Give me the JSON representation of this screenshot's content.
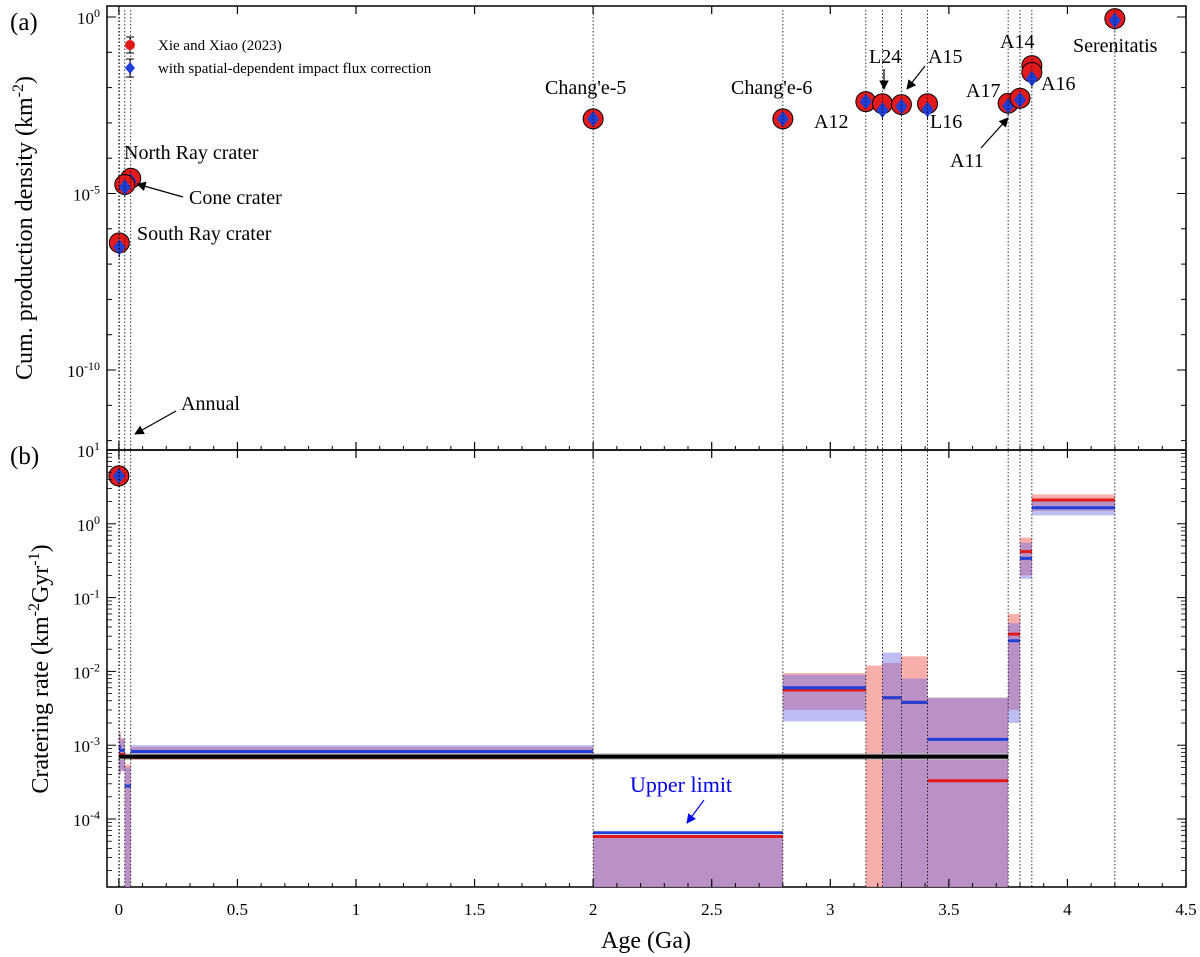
{
  "panel_labels": {
    "a": "(a)",
    "b": "(b)"
  },
  "chart_data": [
    {
      "type": "scatter",
      "panel": "(a)",
      "ylabel_main": "Cum. production density (km",
      "ylabel_sup": "-2",
      "ylabel_close": ")",
      "yscale": "log",
      "xlim": [
        -0.05,
        4.5
      ],
      "ylim_exp": [
        -14,
        0
      ],
      "ytick_exps": [
        0,
        -5,
        -10
      ],
      "legend": {
        "placement": "top-left",
        "entries": [
          "Xie and Xiao (2023)",
          "with spatial-dependent impact flux correction"
        ]
      },
      "series": [
        {
          "name": "Xie and Xiao (2023)",
          "color": "#e31a1c"
        },
        {
          "name": "with spatial-dependent impact flux correction",
          "color": "#1f3fd6"
        }
      ],
      "points": [
        {
          "label": "Annual",
          "x": 0.0,
          "y_red": 1e-13,
          "y_blue": 1e-13
        },
        {
          "label": "South Ray crater",
          "x": 0.002,
          "y_red": 4e-07,
          "y_blue": 3e-07
        },
        {
          "label": "North Ray crater",
          "x": 0.05,
          "y_red": 2.7e-05,
          "y_blue": 2.2e-05
        },
        {
          "label": "Cone crater",
          "x": 0.025,
          "y_red": 1.8e-05,
          "y_blue": 1.5e-05
        },
        {
          "label": "Chang'e-5",
          "x": 2.0,
          "y_red": 0.0013,
          "y_blue": 0.0013
        },
        {
          "label": "Chang'e-6",
          "x": 2.8,
          "y_red": 0.0013,
          "y_blue": 0.0013
        },
        {
          "label": "A12",
          "x": 3.15,
          "y_red": 0.004,
          "y_blue": 0.004
        },
        {
          "label": "L24",
          "x": 3.22,
          "y_red": 0.0035,
          "y_blue": 0.0023
        },
        {
          "label": "A15",
          "x": 3.3,
          "y_red": 0.0033,
          "y_blue": 0.0029
        },
        {
          "label": "L16",
          "x": 3.41,
          "y_red": 0.0035,
          "y_blue": 0.0024
        },
        {
          "label": "A11",
          "x": 3.75,
          "y_red": 0.0036,
          "y_blue": 0.003
        },
        {
          "label": "A17",
          "x": 3.8,
          "y_red": 0.005,
          "y_blue": 0.0045
        },
        {
          "label": "A14",
          "x": 3.85,
          "y_red": 0.042,
          "y_blue": 0.03
        },
        {
          "label": "A16",
          "x": 3.85,
          "y_red": 0.027,
          "y_blue": 0.018
        },
        {
          "label": "Serenitatis",
          "x": 4.2,
          "y_red": 0.9,
          "y_blue": 0.8
        }
      ],
      "annotations": [
        "North Ray crater",
        "Cone crater",
        "South Ray crater",
        "Annual",
        "Chang'e-5",
        "Chang'e-6",
        "A12",
        "L24",
        "A15",
        "L16",
        "A11",
        "A17",
        "A14",
        "A16",
        "Serenitatis"
      ]
    },
    {
      "type": "bar",
      "panel": "(b)",
      "xlabel": "Age (Ga)",
      "ylabel_main": "Cratering rate (km",
      "ylabel_sup1": "-2",
      "ylabel_mid": "Gyr",
      "ylabel_sup2": "-1",
      "ylabel_close": ")",
      "yscale": "log",
      "xlim": [
        -0.05,
        4.5
      ],
      "ylim_exp": [
        -5,
        1
      ],
      "ytick_exps": [
        1,
        0,
        -1,
        -2,
        -3,
        -4
      ],
      "xticks": [
        0,
        0.5,
        1,
        1.5,
        2,
        2.5,
        3,
        3.5,
        4,
        4.5
      ],
      "xtick_labels": [
        "0",
        "0.5",
        "1",
        "1.5",
        "2",
        "2.5",
        "3",
        "3.5",
        "4",
        "4.5"
      ],
      "annotation": {
        "text": "Upper limit",
        "color": "#0000ee",
        "points_to_x": 2.4,
        "points_to_y": 6.5e-05
      },
      "constant_rate": {
        "value": 0.0007,
        "band": [
          0.00063,
          0.00078
        ],
        "x0": 0.0,
        "x1": 3.75
      },
      "intervals": [
        {
          "x0": 0.0,
          "x1": 0.002,
          "red": 0.00095,
          "blue": 0.00095,
          "red_band": [
            0.0004,
            0.0015
          ],
          "blue_band": [
            0.0004,
            0.0014
          ]
        },
        {
          "x0": 0.002,
          "x1": 0.025,
          "red": 0.00075,
          "blue": 0.00085,
          "red_band": [
            0.00045,
            0.00125
          ],
          "blue_band": [
            0.00045,
            0.0012
          ]
        },
        {
          "x0": 0.025,
          "x1": 0.05,
          "red": 0.00028,
          "blue": 0.00028,
          "red_band": [
            1e-05,
            0.00055
          ],
          "blue_band": [
            1e-05,
            0.0005
          ]
        },
        {
          "x0": 0.05,
          "x1": 2.0,
          "red": 0.00068,
          "blue": 0.00082,
          "red_band": [
            0.00063,
            0.00095
          ],
          "blue_band": [
            0.00065,
            0.001
          ]
        },
        {
          "x0": 2.0,
          "x1": 2.8,
          "red": 5.8e-05,
          "blue": 6.5e-05,
          "red_band": [
            1e-05,
            5.8e-05
          ],
          "blue_band": [
            1e-05,
            5.8e-05
          ]
        },
        {
          "x0": 2.8,
          "x1": 3.15,
          "red": 0.0056,
          "blue": 0.006,
          "red_band": [
            0.003,
            0.0095
          ],
          "blue_band": [
            0.0021,
            0.009
          ]
        },
        {
          "x0": 3.15,
          "x1": 3.22,
          "red": null,
          "blue": null,
          "red_band": [
            1e-05,
            0.012
          ],
          "blue_band": null
        },
        {
          "x0": 3.22,
          "x1": 3.3,
          "red": 0.0044,
          "blue": 0.0044,
          "red_band": [
            1e-05,
            0.013
          ],
          "blue_band": [
            1e-05,
            0.018
          ]
        },
        {
          "x0": 3.3,
          "x1": 3.41,
          "red": 0.0038,
          "blue": 0.0038,
          "red_band": [
            1e-05,
            0.016
          ],
          "blue_band": [
            1e-05,
            0.008
          ]
        },
        {
          "x0": 3.41,
          "x1": 3.75,
          "red": 0.00033,
          "blue": 0.0012,
          "red_band": [
            1e-05,
            0.0044
          ],
          "blue_band": [
            1e-05,
            0.0044
          ]
        },
        {
          "x0": 3.75,
          "x1": 3.8,
          "red": 0.032,
          "blue": 0.026,
          "red_band": [
            0.003,
            0.06
          ],
          "blue_band": [
            0.002,
            0.045
          ]
        },
        {
          "x0": 3.8,
          "x1": 3.85,
          "red": 0.42,
          "blue": 0.34,
          "red_band": [
            0.2,
            0.65
          ],
          "blue_band": [
            0.18,
            0.55
          ]
        },
        {
          "x0": 3.85,
          "x1": 4.2,
          "red": 2.1,
          "blue": 1.65,
          "red_band": [
            1.5,
            2.5
          ],
          "blue_band": [
            1.3,
            2.0
          ]
        }
      ],
      "boundaries": [
        0,
        0.002,
        0.025,
        0.05,
        2.0,
        2.8,
        3.15,
        3.22,
        3.3,
        3.41,
        3.75,
        3.8,
        3.85,
        4.2
      ]
    }
  ],
  "colors": {
    "red": "#e31a1c",
    "blue": "#1f3fd6",
    "red_band": "#f7a09c",
    "blue_band": "#a6aef0",
    "overlap": "#a97fc9",
    "black": "#000000",
    "gray_band": "#bdbdbd",
    "label_blue": "#0000ee"
  }
}
